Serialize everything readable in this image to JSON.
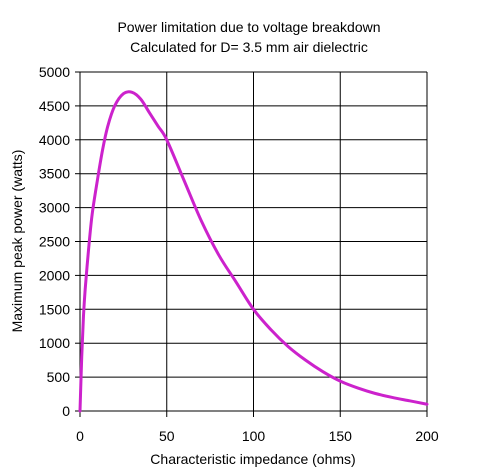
{
  "chart_data": {
    "type": "line",
    "title": "Power limitation due to voltage breakdown",
    "subtitle": "Calculated for D= 3.5 mm air dielectric",
    "xlabel": "Characteristic impedance (ohms)",
    "ylabel": "Maximum peak power (watts)",
    "xlim": [
      0,
      200
    ],
    "ylim": [
      0,
      5000
    ],
    "x_ticks": [
      "0",
      "50",
      "100",
      "150",
      "200"
    ],
    "y_ticks": [
      "0",
      "500",
      "1000",
      "1500",
      "2000",
      "2500",
      "3000",
      "3500",
      "4000",
      "4500",
      "5000"
    ],
    "grid": {
      "vertical": true,
      "horizontal": true
    },
    "legend": "none",
    "series": [
      {
        "color": "#cc22cc",
        "x": [
          0,
          1,
          2,
          3,
          5,
          7,
          10,
          13,
          16,
          20,
          25,
          30,
          35,
          40,
          45,
          50,
          60,
          70,
          80,
          90,
          100,
          110,
          120,
          130,
          140,
          150,
          160,
          170,
          180,
          190,
          200
        ],
        "y": [
          0,
          800,
          1400,
          1800,
          2400,
          2900,
          3400,
          3850,
          4200,
          4500,
          4680,
          4700,
          4600,
          4400,
          4200,
          4000,
          3400,
          2800,
          2300,
          1900,
          1500,
          1200,
          950,
          750,
          580,
          440,
          340,
          260,
          200,
          150,
          100
        ]
      }
    ]
  }
}
